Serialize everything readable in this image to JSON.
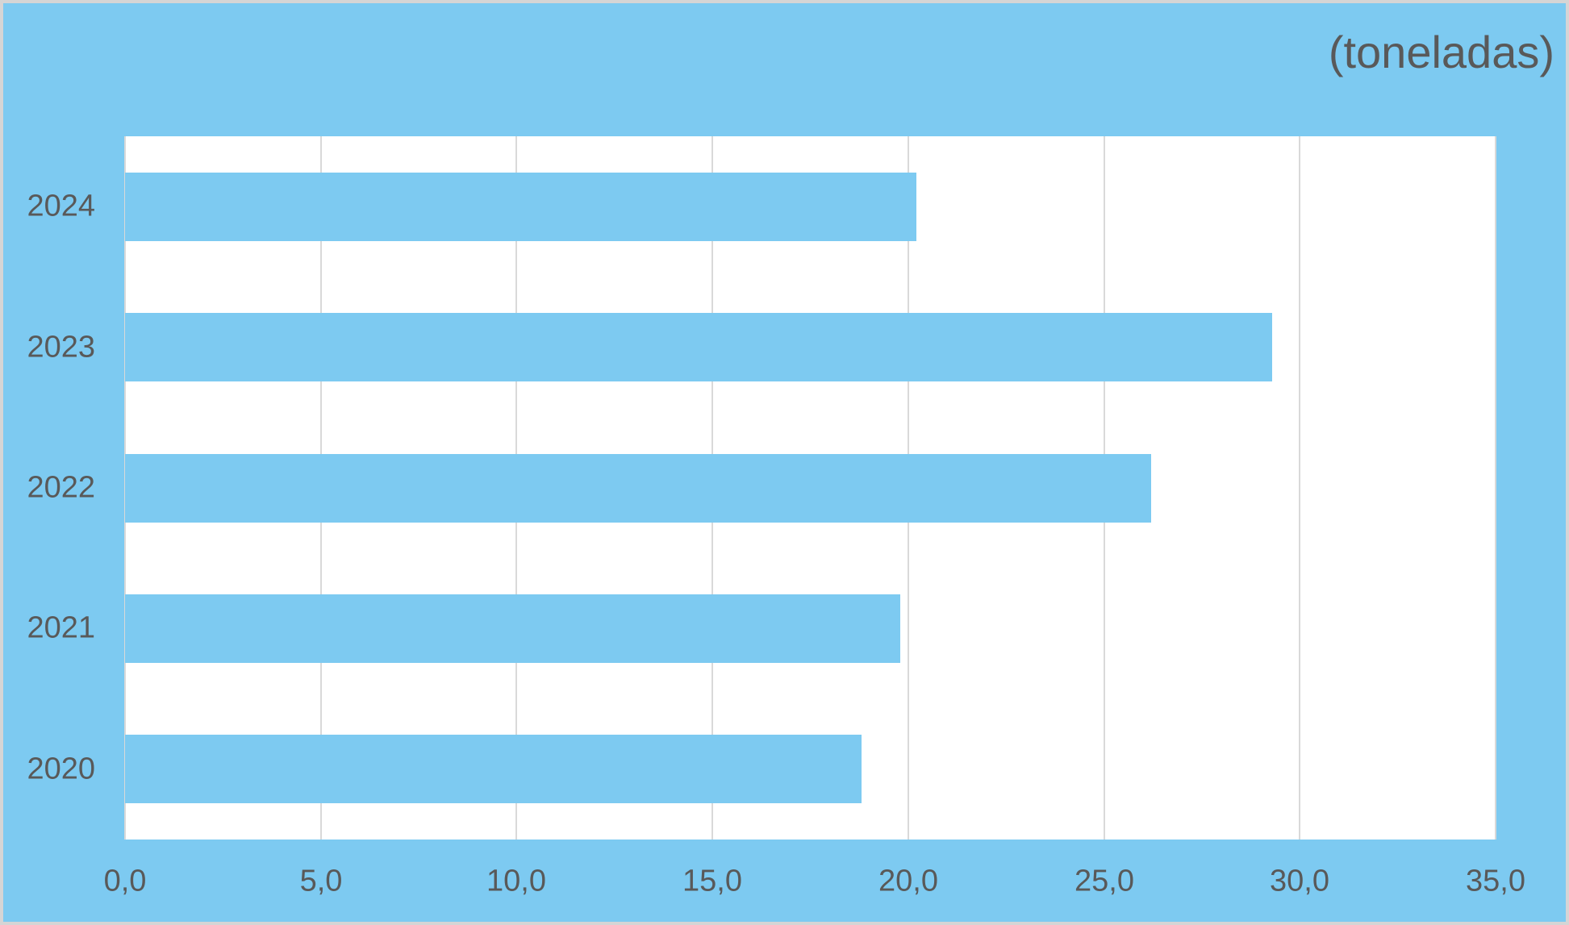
{
  "window": {
    "background_color": "#7DCAF1",
    "frame_border_color": "#D5D5D5"
  },
  "chart_data": {
    "type": "bar",
    "orientation": "horizontal",
    "title": "(toneladas)",
    "categories": [
      "2024",
      "2023",
      "2022",
      "2021",
      "2020"
    ],
    "values": [
      20.2,
      29.3,
      26.2,
      19.8,
      18.8
    ],
    "xlabel": "",
    "ylabel": "",
    "xlim": [
      0,
      35
    ],
    "x_ticks": [
      0,
      5,
      10,
      15,
      20,
      25,
      30,
      35
    ],
    "x_tick_labels": [
      "0,0",
      "5,0",
      "10,0",
      "15,0",
      "20,0",
      "25,0",
      "30,0",
      "35,0"
    ],
    "grid": "vertical-only",
    "legend": "none",
    "data_labels": "none",
    "bar_color": "#7DCAF1",
    "plot_background_color": "#FFFFFF",
    "gridline_color": "#D9D9D9",
    "text_color": "#595959"
  }
}
